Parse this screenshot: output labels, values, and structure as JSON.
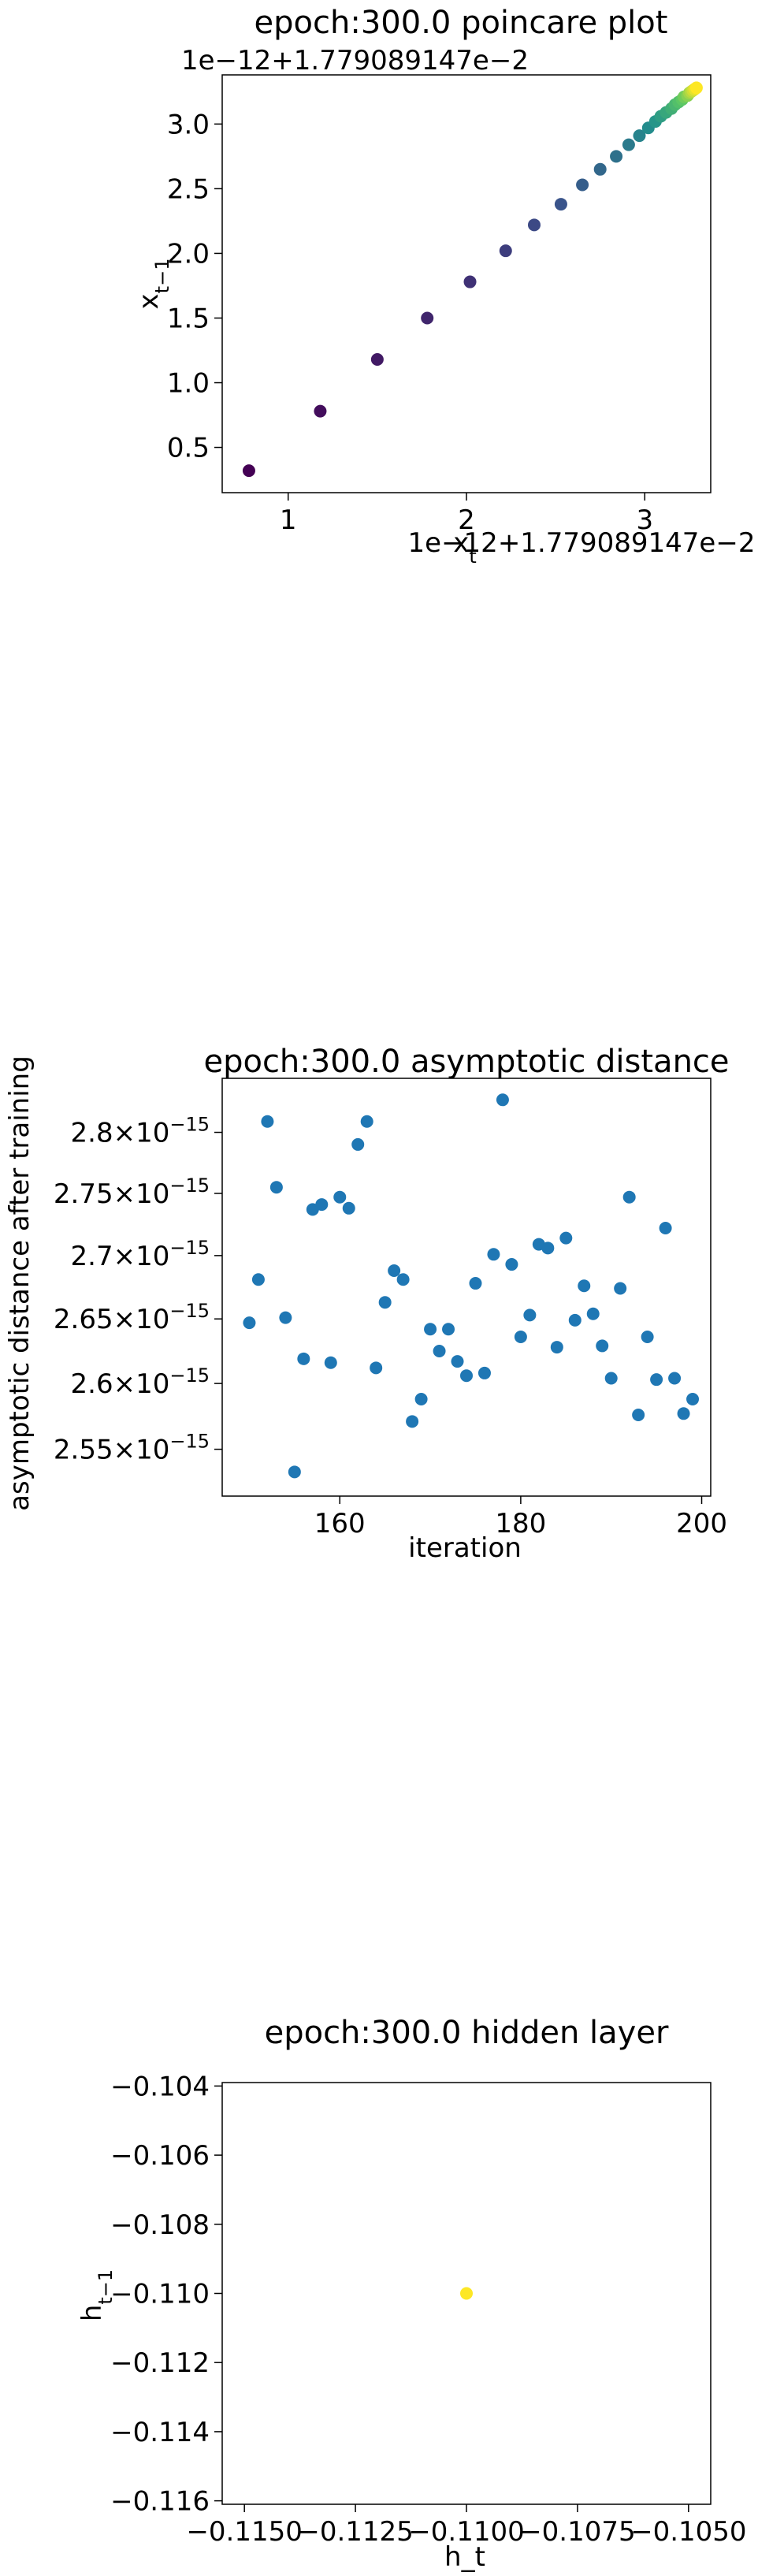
{
  "chart_data": [
    {
      "type": "scatter",
      "title": "epoch:300.0 poincare plot",
      "xlabel": "x_t",
      "ylabel": "x_{t-1}",
      "x_offset_text": "1e−12+1.779089147e−2",
      "y_offset_text": "1e−12+1.779089147e−2",
      "xlim": [
        0.63,
        3.37
      ],
      "ylim": [
        0.15,
        3.38
      ],
      "x_ticks": [
        1,
        2,
        3
      ],
      "x_tick_labels": [
        "1",
        "2",
        "3"
      ],
      "y_ticks": [
        0.5,
        1.0,
        1.5,
        2.0,
        2.5,
        3.0
      ],
      "y_tick_labels": [
        "0.5",
        "1.0",
        "1.5",
        "2.0",
        "2.5",
        "3.0"
      ],
      "colormap": "viridis",
      "colors": [
        "#440154",
        "#3b528b",
        "#21918c",
        "#5ec962",
        "#fde725"
      ],
      "grid": false,
      "x": [
        0.78,
        1.18,
        1.5,
        1.78,
        2.02,
        2.22,
        2.38,
        2.53,
        2.65,
        2.75,
        2.84,
        2.91,
        2.97,
        3.02,
        3.06,
        3.09,
        3.12,
        3.15,
        3.17,
        3.19,
        3.21,
        3.22,
        3.24,
        3.25,
        3.26,
        3.27,
        3.28,
        3.29
      ],
      "y": [
        0.32,
        0.78,
        1.18,
        1.5,
        1.78,
        2.02,
        2.22,
        2.38,
        2.53,
        2.65,
        2.75,
        2.84,
        2.91,
        2.97,
        3.02,
        3.06,
        3.09,
        3.12,
        3.15,
        3.17,
        3.19,
        3.21,
        3.22,
        3.24,
        3.25,
        3.26,
        3.27,
        3.28
      ]
    },
    {
      "type": "scatter",
      "title": "epoch:300.0 asymptotic distance",
      "xlabel": "iteration",
      "ylabel": "asymptotic distance after training",
      "y_scale": "log",
      "xlim": [
        147,
        201
      ],
      "ylim": [
        2.515e-15,
        2.845e-15
      ],
      "x_ticks": [
        160,
        180,
        200
      ],
      "x_tick_labels": [
        "160",
        "180",
        "200"
      ],
      "y_ticks": [
        2.55e-15,
        2.6e-15,
        2.65e-15,
        2.7e-15,
        2.75e-15,
        2.8e-15
      ],
      "y_tick_mantissas": [
        "2.55",
        "2.6",
        "2.65",
        "2.7",
        "2.75",
        "2.8"
      ],
      "y_tick_base": "×10",
      "y_tick_exponent": "−15",
      "color": "#1f77b4",
      "grid": false,
      "x": [
        150,
        151,
        152,
        153,
        154,
        155,
        156,
        157,
        158,
        159,
        160,
        161,
        162,
        163,
        164,
        165,
        166,
        167,
        168,
        169,
        170,
        171,
        172,
        173,
        174,
        175,
        176,
        177,
        178,
        179,
        180,
        181,
        182,
        183,
        184,
        185,
        186,
        187,
        188,
        189,
        190,
        191,
        192,
        193,
        194,
        195,
        196,
        197,
        198,
        199
      ],
      "y": [
        2.647e-15,
        2.681e-15,
        2.809e-15,
        2.755e-15,
        2.651e-15,
        2.533e-15,
        2.619e-15,
        2.737e-15,
        2.741e-15,
        2.616e-15,
        2.747e-15,
        2.738e-15,
        2.79e-15,
        2.809e-15,
        2.612e-15,
        2.663e-15,
        2.688e-15,
        2.681e-15,
        2.571e-15,
        2.588e-15,
        2.642e-15,
        2.625e-15,
        2.642e-15,
        2.617e-15,
        2.606e-15,
        2.678e-15,
        2.608e-15,
        2.701e-15,
        2.827e-15,
        2.693e-15,
        2.636e-15,
        2.653e-15,
        2.709e-15,
        2.706e-15,
        2.628e-15,
        2.714e-15,
        2.649e-15,
        2.676e-15,
        2.654e-15,
        2.629e-15,
        2.604e-15,
        2.674e-15,
        2.747e-15,
        2.576e-15,
        2.636e-15,
        2.603e-15,
        2.722e-15,
        2.604e-15,
        2.577e-15,
        2.588e-15
      ]
    },
    {
      "type": "scatter",
      "title": "epoch:300.0 hidden layer",
      "xlabel": "h_t",
      "ylabel": "h_{t-1}",
      "xlim": [
        -0.1155,
        -0.1045
      ],
      "ylim": [
        -0.1161,
        -0.1039
      ],
      "x_ticks": [
        -0.115,
        -0.1125,
        -0.11,
        -0.1075,
        -0.105
      ],
      "x_tick_labels": [
        "−0.1150",
        "−0.1125",
        "−0.1100",
        "−0.1075",
        "−0.1050"
      ],
      "y_ticks": [
        -0.116,
        -0.114,
        -0.112,
        -0.11,
        -0.108,
        -0.106,
        -0.104
      ],
      "y_tick_labels": [
        "−0.116",
        "−0.114",
        "−0.112",
        "−0.110",
        "−0.108",
        "−0.106",
        "−0.104"
      ],
      "color": "#fde725",
      "grid": false,
      "x": [
        -0.11
      ],
      "y": [
        -0.11
      ]
    }
  ]
}
